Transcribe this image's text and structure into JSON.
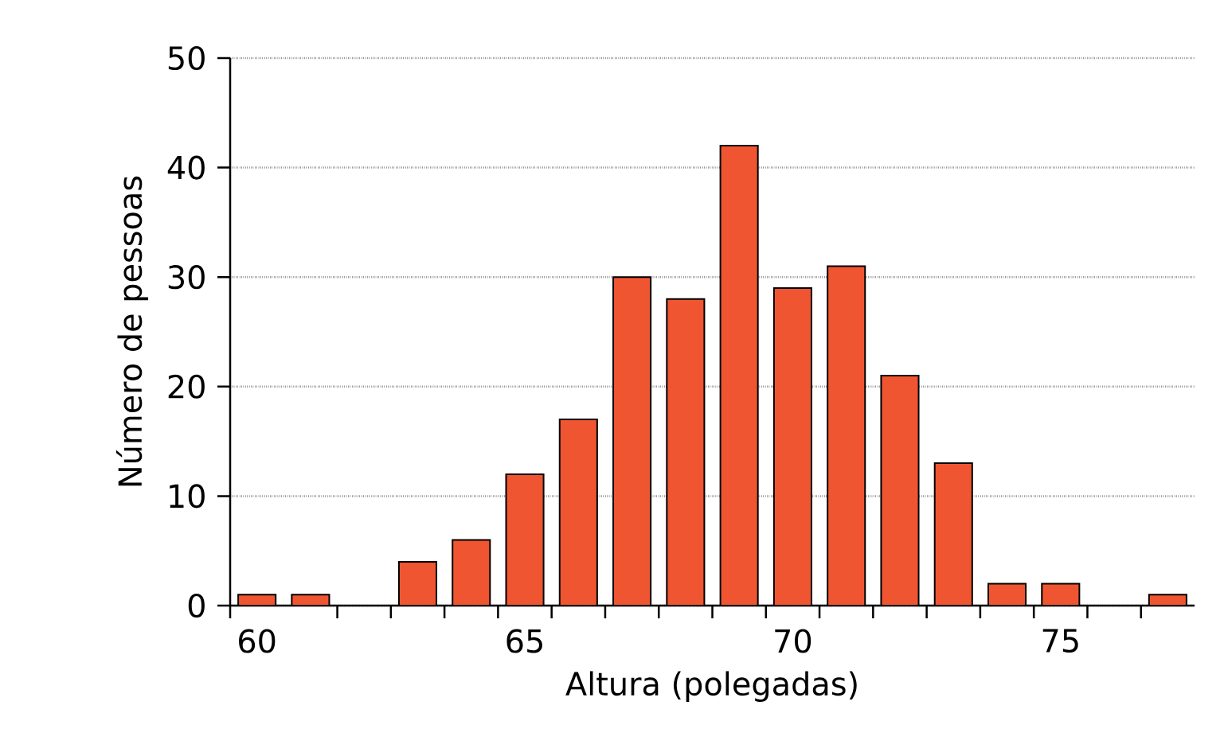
{
  "chart_data": {
    "type": "bar",
    "xlabel": "Altura (polegadas)",
    "ylabel": "Número de pessoas",
    "x": [
      60,
      61,
      63,
      64,
      65,
      66,
      67,
      68,
      69,
      70,
      71,
      72,
      73,
      74,
      75,
      77
    ],
    "values": [
      1,
      1,
      4,
      6,
      12,
      17,
      30,
      28,
      42,
      29,
      31,
      21,
      13,
      2,
      2,
      1
    ],
    "color": "#f05532",
    "xlim": [
      59.5,
      77.5
    ],
    "xticks": [
      60,
      65,
      70,
      75,
      {
        "value": 59.5,
        "label": null
      },
      {
        "value": 61.5,
        "label": null
      },
      {
        "value": 62.5,
        "label": null
      },
      {
        "value": 63.5,
        "label": null
      },
      {
        "value": 64.5,
        "label": null
      },
      {
        "value": 65.5,
        "label": null
      },
      {
        "value": 66.5,
        "label": null
      },
      {
        "value": 67.5,
        "label": null
      },
      {
        "value": 68.5,
        "label": null
      },
      {
        "value": 69.5,
        "label": null
      },
      {
        "value": 70.5,
        "label": null
      },
      {
        "value": 71.5,
        "label": null
      },
      {
        "value": 72.5,
        "label": null
      },
      {
        "value": 73.5,
        "label": null
      },
      {
        "value": 74.5,
        "label": null
      },
      {
        "value": 75.5,
        "label": null
      },
      {
        "value": 76.5,
        "label": null
      }
    ],
    "ylim": [
      0,
      50
    ],
    "yticks": [
      0,
      10,
      20,
      30,
      40,
      50
    ],
    "grid": "y"
  }
}
